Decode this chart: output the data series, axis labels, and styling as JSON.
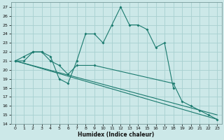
{
  "xlabel": "Humidex (Indice chaleur)",
  "background_color": "#cce8e8",
  "grid_color": "#a8d0d0",
  "line_color": "#1a7a6e",
  "xlim": [
    -0.5,
    23.5
  ],
  "ylim": [
    14,
    27.5
  ],
  "xtick_labels": [
    "0",
    "1",
    "2",
    "3",
    "4",
    "5",
    "6",
    "7",
    "8",
    "9",
    "10",
    "11",
    "12",
    "13",
    "14",
    "15",
    "16",
    "17",
    "18",
    "19",
    "20",
    "21",
    "22",
    "23"
  ],
  "ytick_values": [
    14,
    15,
    16,
    17,
    18,
    19,
    20,
    21,
    22,
    23,
    24,
    25,
    26,
    27
  ],
  "series": [
    {
      "x": [
        0,
        1,
        2,
        3,
        4,
        5,
        6,
        7,
        8,
        9,
        10,
        11,
        12,
        13,
        14,
        15,
        16,
        17,
        18
      ],
      "y": [
        21,
        21.5,
        22,
        22,
        21.5,
        19,
        18.5,
        21,
        24,
        24,
        23,
        25,
        27,
        25,
        25,
        24.5,
        22.5,
        23,
        18
      ],
      "has_markers": true
    },
    {
      "x": [
        0,
        23
      ],
      "y": [
        21,
        14.5
      ],
      "has_markers": false
    },
    {
      "x": [
        0,
        23
      ],
      "y": [
        21,
        15
      ],
      "has_markers": false
    },
    {
      "x": [
        0,
        1,
        2,
        3,
        4,
        5,
        6,
        7,
        9,
        18,
        19,
        20,
        21,
        22,
        23
      ],
      "y": [
        21,
        21,
        22,
        22,
        21,
        20.5,
        19.5,
        20.5,
        20.5,
        18.5,
        16.5,
        16,
        15.5,
        15,
        14.5
      ],
      "has_markers": true
    }
  ]
}
